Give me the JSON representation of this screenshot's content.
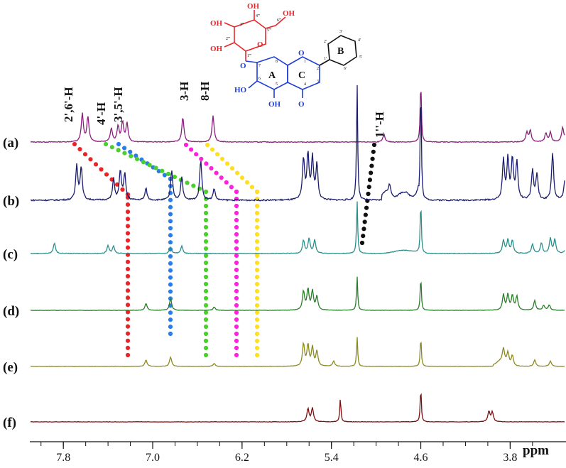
{
  "chart_data": {
    "type": "line",
    "title": "",
    "xlabel": "ppm",
    "x_reversed": true,
    "xlim": [
      8.1,
      3.3
    ],
    "x_ticks": [
      "7.8",
      "7.0",
      "6.2",
      "5.4",
      "4.6",
      "3.8"
    ],
    "x_tick_values": [
      7.8,
      7.0,
      6.2,
      5.4,
      4.6,
      3.8
    ],
    "series": [
      {
        "name": "(a)",
        "color": "#8b1f7d",
        "peaks": [
          [
            7.63,
            45
          ],
          [
            7.58,
            40
          ],
          [
            7.37,
            22
          ],
          [
            7.31,
            25
          ],
          [
            7.27,
            32
          ],
          [
            7.23,
            30
          ],
          [
            6.73,
            40
          ],
          [
            6.46,
            42
          ],
          [
            4.93,
            12
          ],
          [
            4.6,
            100
          ],
          [
            3.65,
            15
          ],
          [
            3.62,
            18
          ],
          [
            3.48,
            14
          ],
          [
            3.44,
            15
          ],
          [
            3.33,
            22
          ],
          [
            3.29,
            20
          ],
          [
            3.26,
            16
          ]
        ]
      },
      {
        "name": "(b)",
        "color": "#1a1d6e",
        "peaks": [
          [
            7.68,
            30
          ],
          [
            7.64,
            28
          ],
          [
            7.35,
            18
          ],
          [
            7.29,
            25
          ],
          [
            7.25,
            22
          ],
          [
            7.06,
            10
          ],
          [
            6.83,
            25
          ],
          [
            6.74,
            20
          ],
          [
            6.57,
            35
          ],
          [
            6.45,
            10
          ],
          [
            5.65,
            35
          ],
          [
            5.61,
            38
          ],
          [
            5.57,
            35
          ],
          [
            5.53,
            30
          ],
          [
            5.17,
            100
          ],
          [
            4.88,
            8
          ],
          [
            4.6,
            100
          ],
          [
            3.86,
            34
          ],
          [
            3.82,
            34
          ],
          [
            3.78,
            34
          ],
          [
            3.74,
            32
          ],
          [
            3.6,
            25
          ],
          [
            3.56,
            22
          ],
          [
            3.42,
            40
          ],
          [
            3.31,
            16
          ],
          [
            3.27,
            18
          ]
        ]
      },
      {
        "name": "(c)",
        "color": "#2a8f8a",
        "peaks": [
          [
            7.88,
            20
          ],
          [
            7.4,
            15
          ],
          [
            7.35,
            14
          ],
          [
            6.84,
            12
          ],
          [
            6.74,
            14
          ],
          [
            5.65,
            25
          ],
          [
            5.6,
            28
          ],
          [
            5.55,
            25
          ],
          [
            5.17,
            100
          ],
          [
            4.6,
            100
          ],
          [
            3.86,
            25
          ],
          [
            3.82,
            25
          ],
          [
            3.78,
            24
          ],
          [
            3.6,
            18
          ],
          [
            3.52,
            20
          ],
          [
            3.44,
            28
          ],
          [
            3.4,
            26
          ],
          [
            3.3,
            12
          ]
        ]
      },
      {
        "name": "(d)",
        "color": "#2a7d2a",
        "peaks": [
          [
            7.06,
            20
          ],
          [
            6.84,
            35
          ],
          [
            6.45,
            10
          ],
          [
            5.65,
            55
          ],
          [
            5.61,
            60
          ],
          [
            5.57,
            55
          ],
          [
            5.53,
            40
          ],
          [
            5.17,
            100
          ],
          [
            4.6,
            100
          ],
          [
            3.86,
            45
          ],
          [
            3.82,
            45
          ],
          [
            3.78,
            42
          ],
          [
            3.74,
            40
          ],
          [
            3.58,
            28
          ],
          [
            3.5,
            14
          ],
          [
            3.45,
            16
          ]
        ]
      },
      {
        "name": "(e)",
        "color": "#8c8a1f",
        "peaks": [
          [
            7.06,
            22
          ],
          [
            6.84,
            32
          ],
          [
            6.45,
            10
          ],
          [
            5.65,
            75
          ],
          [
            5.61,
            70
          ],
          [
            5.57,
            62
          ],
          [
            5.53,
            50
          ],
          [
            5.38,
            18
          ],
          [
            5.17,
            100
          ],
          [
            4.6,
            100
          ],
          [
            3.86,
            45
          ],
          [
            3.82,
            40
          ],
          [
            3.78,
            36
          ],
          [
            3.58,
            22
          ],
          [
            3.44,
            18
          ]
        ]
      },
      {
        "name": "(f)",
        "color": "#7a0f0f",
        "peaks": [
          [
            5.61,
            38
          ],
          [
            5.57,
            40
          ],
          [
            5.32,
            70
          ],
          [
            4.6,
            100
          ],
          [
            3.99,
            30
          ],
          [
            3.96,
            28
          ]
        ]
      }
    ],
    "peak_labels": [
      "2',6'-H",
      "4'-H",
      "3',5'-H",
      "3-H",
      "8-H",
      "1''-H"
    ],
    "guide_lines": [
      {
        "color": "#e8262a"
      },
      {
        "color": "#2a7de8"
      },
      {
        "color": "#4ad02a"
      },
      {
        "color": "#ff22dd"
      },
      {
        "color": "#ffe020"
      },
      {
        "color": "#111111"
      }
    ]
  },
  "molecule": {
    "glucose_labels": [
      "OH",
      "OH",
      "OH",
      "OH"
    ],
    "glucose_numbers": [
      "1'''",
      "2'''",
      "3'''",
      "4'''",
      "5'''",
      "6'''"
    ],
    "flavone_labels": [
      "HO",
      "OH",
      "O",
      "O"
    ],
    "flavone_numbers": [
      "1",
      "2",
      "3",
      "4",
      "5",
      "6",
      "7",
      "8"
    ],
    "ring_labels": [
      "A",
      "C",
      "B"
    ],
    "b_ring_numbers": [
      "1'",
      "2'",
      "3'",
      "4'",
      "5'",
      "6'"
    ],
    "colors": {
      "sugar": "#e8262a",
      "aglycone": "#1f3fd6",
      "bring": "#111111"
    }
  }
}
